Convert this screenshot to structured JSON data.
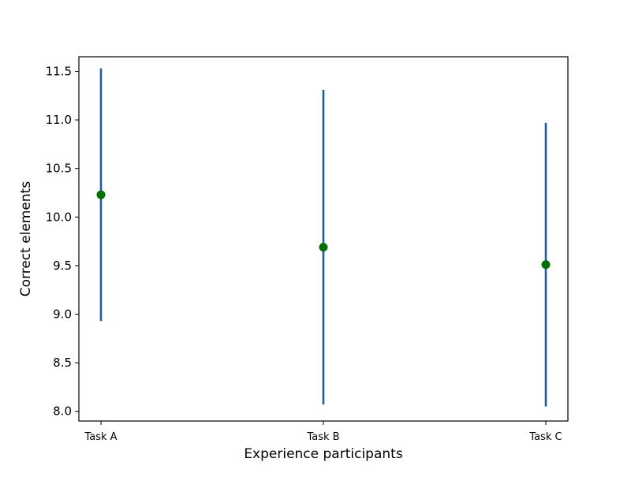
{
  "chart_data": {
    "type": "scatter",
    "title": "",
    "xlabel": "Experience participants",
    "ylabel": "Correct elements",
    "categories": [
      "Task A",
      "Task B",
      "Task C"
    ],
    "series": [
      {
        "values": [
          10.23,
          9.69,
          9.51
        ],
        "error_low": [
          8.93,
          8.07,
          8.05
        ],
        "error_high": [
          11.53,
          11.31,
          10.97
        ],
        "marker_color": "#007000",
        "errorbar_color": "#1f5fa0"
      }
    ],
    "ylim": [
      7.9,
      11.65
    ],
    "yticks": [
      "8.0",
      "8.5",
      "9.0",
      "9.5",
      "10.0",
      "10.5",
      "11.0",
      "11.5"
    ],
    "grid": false,
    "legend": "none"
  }
}
